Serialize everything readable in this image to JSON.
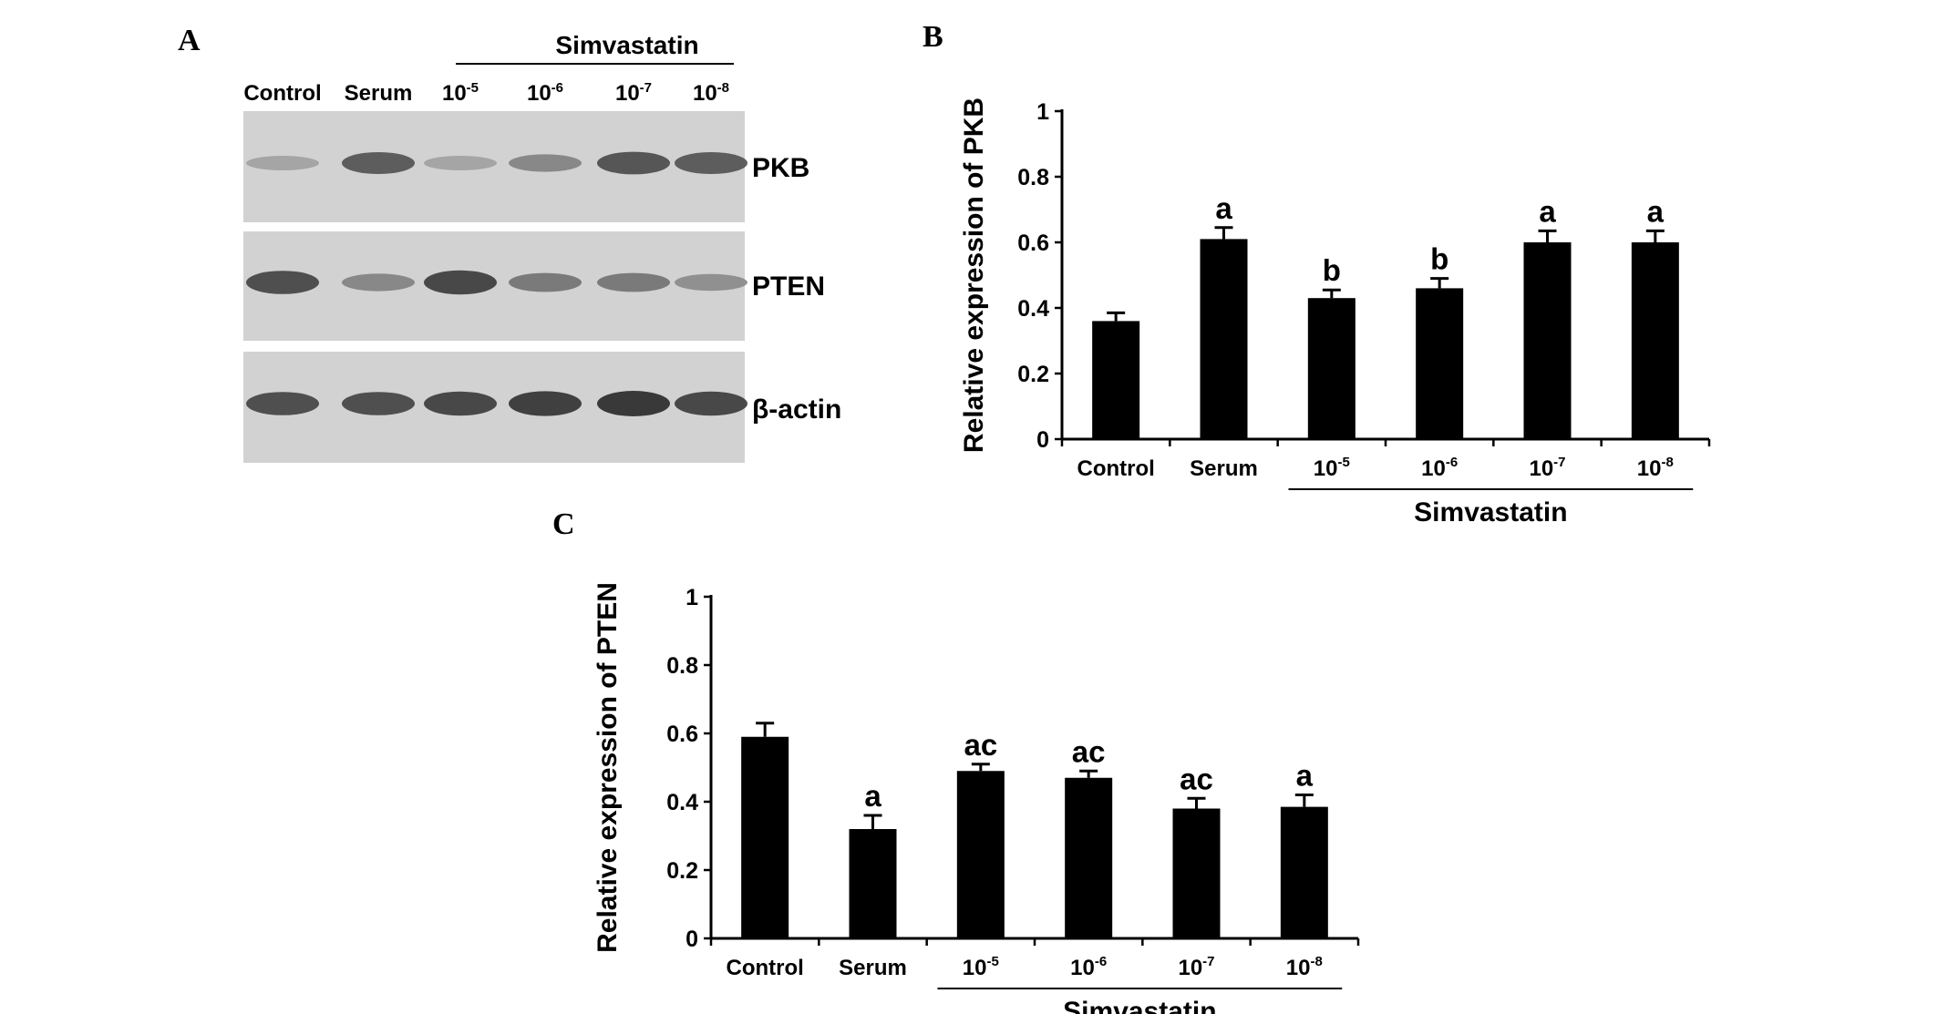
{
  "panels": {
    "a": "A",
    "b": "B",
    "c": "C"
  },
  "blot": {
    "group_label": "Simvastatin",
    "lanes": [
      {
        "label": "Control",
        "sup": ""
      },
      {
        "label": "Serum",
        "sup": ""
      },
      {
        "label": "10",
        "sup": "-5"
      },
      {
        "label": "10",
        "sup": "-6"
      },
      {
        "label": "10",
        "sup": "-7"
      },
      {
        "label": "10",
        "sup": "-8"
      }
    ],
    "bands": [
      "PKB",
      "PTEN",
      "β-actin"
    ],
    "intensity": {
      "PKB": [
        0.25,
        0.75,
        0.25,
        0.45,
        0.8,
        0.75
      ],
      "PTEN": [
        0.85,
        0.45,
        0.9,
        0.55,
        0.55,
        0.4
      ],
      "β-actin": [
        0.85,
        0.85,
        0.9,
        0.95,
        1.0,
        0.9
      ]
    }
  },
  "chart_data": [
    {
      "type": "bar",
      "panel": "B",
      "categories": [
        "Control",
        "Serum",
        "10-5",
        "10-6",
        "10-7",
        "10-8"
      ],
      "values": [
        0.36,
        0.61,
        0.43,
        0.46,
        0.6,
        0.6
      ],
      "errors": [
        0.025,
        0.035,
        0.025,
        0.03,
        0.035,
        0.035
      ],
      "annotations": [
        "",
        "a",
        "b",
        "b",
        "a",
        "a"
      ],
      "ylabel": "Relative expression of PKB",
      "group_label": "Simvastatin",
      "ylim": [
        0,
        1
      ],
      "yticks": [
        "0",
        "0.2",
        "0.4",
        "0.6",
        "0.8",
        "1"
      ],
      "grid": false
    },
    {
      "type": "bar",
      "panel": "C",
      "categories": [
        "Control",
        "Serum",
        "10-5",
        "10-6",
        "10-7",
        "10-8"
      ],
      "values": [
        0.59,
        0.32,
        0.49,
        0.47,
        0.38,
        0.385
      ],
      "errors": [
        0.04,
        0.04,
        0.02,
        0.02,
        0.03,
        0.035
      ],
      "annotations": [
        "",
        "a",
        "ac",
        "ac",
        "ac",
        "a"
      ],
      "ylabel": "Relative expression of PTEN",
      "group_label": "Simvastatin",
      "ylim": [
        0,
        1
      ],
      "yticks": [
        "0",
        "0.2",
        "0.4",
        "0.6",
        "0.8",
        "1"
      ],
      "grid": false
    }
  ]
}
